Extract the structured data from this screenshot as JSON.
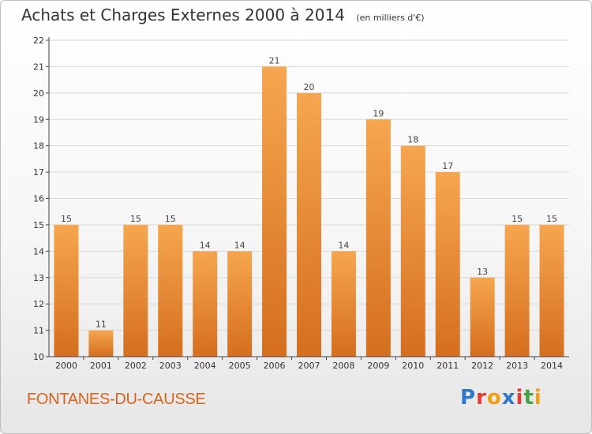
{
  "header": {
    "title": "Achats et Charges Externes 2000 à 2014",
    "unit": "(en milliers d'€)"
  },
  "footer": {
    "commune": "FONTANES-DU-CAUSSE",
    "logo_text": "Proxiti",
    "logo_colors": [
      "#2f77c9",
      "#e03c31",
      "#f2a010",
      "#2f77c9",
      "#e03c31",
      "#46a24a",
      "#f2a010"
    ]
  },
  "colors": {
    "bar_top": "#f6a64f",
    "bar_bottom": "#d56e1f",
    "grid": "#d9d9d9",
    "axis": "#444444"
  },
  "chart_data": {
    "type": "bar",
    "title": "Achats et Charges Externes 2000 à 2014",
    "subtitle": "(en milliers d'€)",
    "xlabel": "",
    "ylabel": "",
    "categories": [
      "2000",
      "2001",
      "2002",
      "2003",
      "2004",
      "2005",
      "2006",
      "2007",
      "2008",
      "2009",
      "2010",
      "2011",
      "2012",
      "2013",
      "2014"
    ],
    "values": [
      15,
      11,
      15,
      15,
      14,
      14,
      21,
      20,
      14,
      19,
      18,
      17,
      13,
      15,
      15
    ],
    "ylim": [
      10,
      22
    ],
    "yticks": [
      10,
      11,
      12,
      13,
      14,
      15,
      16,
      17,
      18,
      19,
      20,
      21,
      22
    ],
    "grid": true,
    "legend": "none",
    "data_labels": true
  }
}
